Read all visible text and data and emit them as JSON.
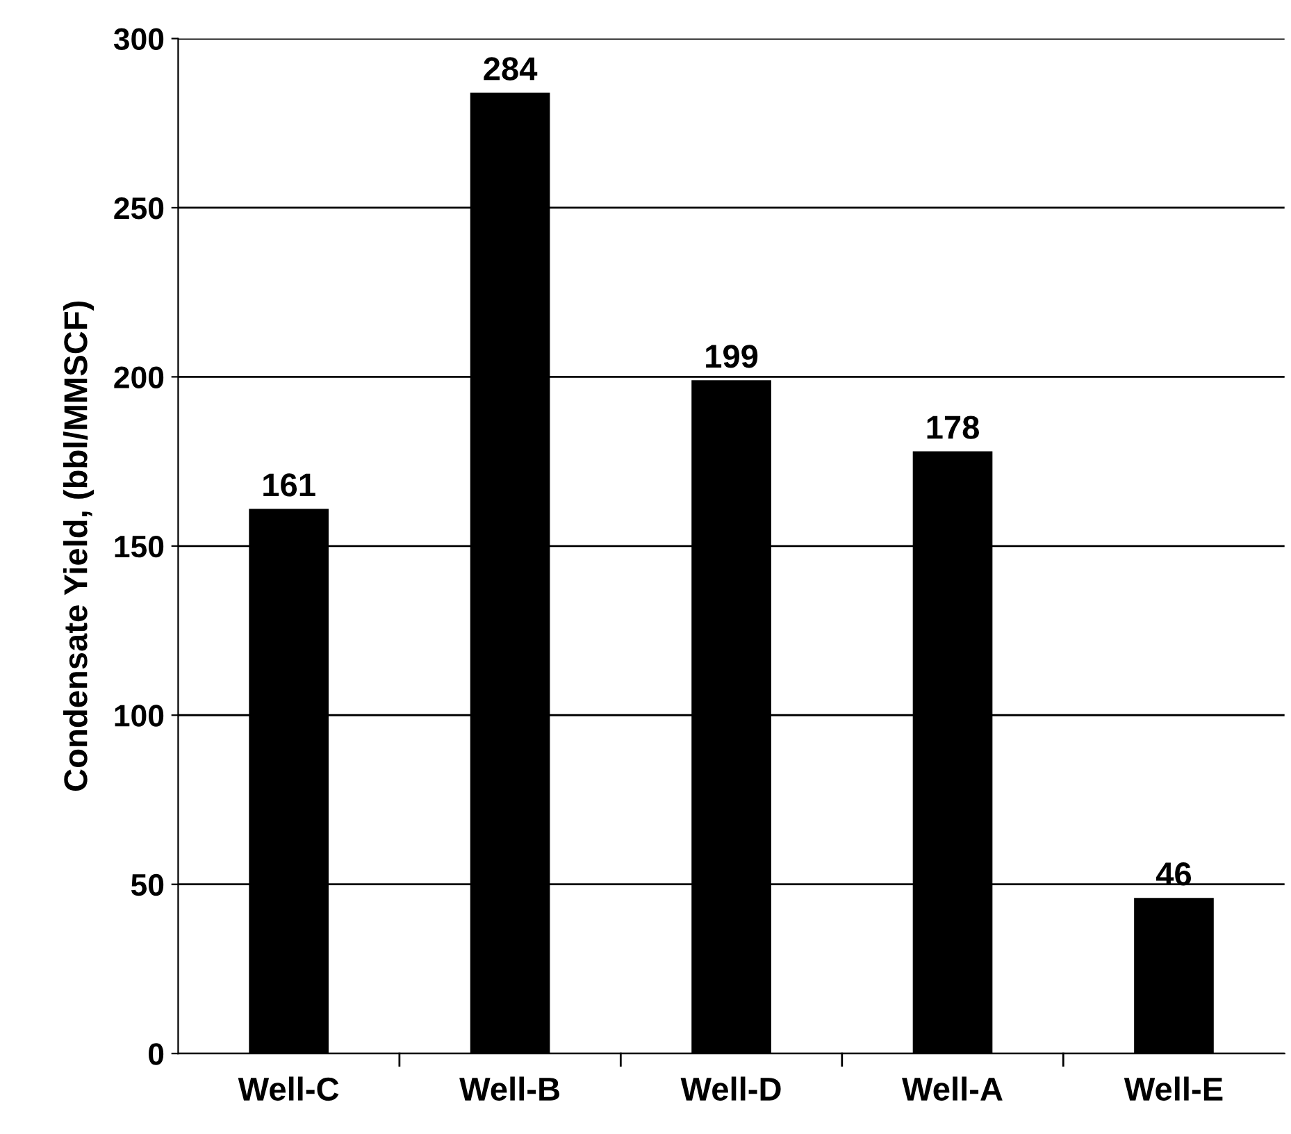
{
  "chart_data": {
    "type": "bar",
    "ylabel": "Condensate Yield, (bbl/MMSCF)",
    "categories": [
      "Well-C",
      "Well-B",
      "Well-D",
      "Well-A",
      "Well-E"
    ],
    "values": [
      161,
      284,
      199,
      178,
      46
    ],
    "color": "#000000",
    "ylim": [
      0,
      300
    ],
    "yticks": [
      0,
      50,
      100,
      150,
      200,
      250,
      300
    ],
    "grid": "y",
    "data_labels": true
  }
}
